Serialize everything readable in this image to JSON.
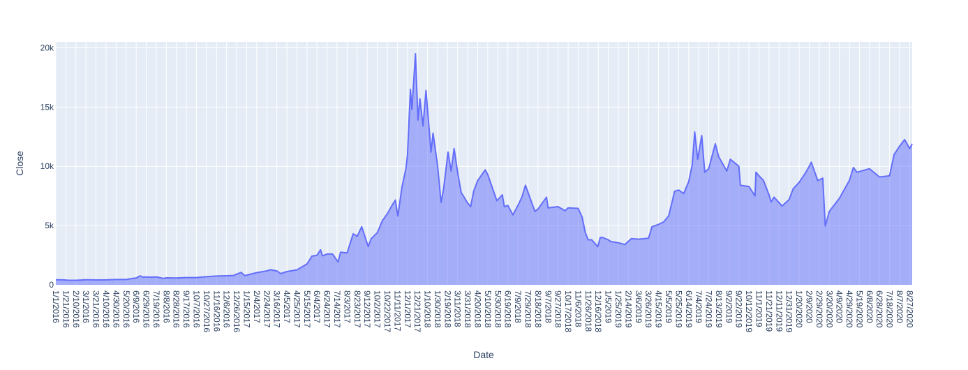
{
  "chart_data": {
    "type": "area",
    "title": "",
    "xlabel": "Date",
    "ylabel": "Close",
    "x_start": "2016-01-01",
    "x_end": "2020-09-01",
    "ylim": [
      0,
      20500
    ],
    "y_ticks": [
      {
        "value": 0,
        "label": "0"
      },
      {
        "value": 5000,
        "label": "5k"
      },
      {
        "value": 10000,
        "label": "10k"
      },
      {
        "value": 15000,
        "label": "15k"
      },
      {
        "value": 20000,
        "label": "20k"
      }
    ],
    "x_tick_labels": [
      "1/1/2016",
      "1/21/2016",
      "2/10/2016",
      "3/1/2016",
      "3/21/2016",
      "4/10/2016",
      "4/30/2016",
      "5/20/2016",
      "6/9/2016",
      "6/29/2016",
      "7/19/2016",
      "8/8/2016",
      "8/28/2016",
      "9/17/2016",
      "10/7/2016",
      "10/27/2016",
      "11/16/2016",
      "12/6/2016",
      "12/26/2016",
      "1/15/2017",
      "2/4/2017",
      "2/24/2017",
      "3/16/2017",
      "4/5/2017",
      "4/25/2017",
      "5/15/2017",
      "6/4/2017",
      "6/24/2017",
      "7/14/2017",
      "8/3/2017",
      "8/23/2017",
      "9/12/2017",
      "10/2/2017",
      "10/22/2017",
      "11/11/2017",
      "12/1/2017",
      "12/21/2017",
      "1/10/2018",
      "1/30/2018",
      "2/19/2018",
      "3/11/2018",
      "3/31/2018",
      "4/20/2018",
      "5/10/2018",
      "5/30/2018",
      "6/19/2018",
      "7/9/2018",
      "7/29/2018",
      "8/18/2018",
      "9/7/2018",
      "9/27/2018",
      "10/17/2018",
      "11/6/2018",
      "11/26/2018",
      "12/16/2018",
      "1/5/2019",
      "1/25/2019",
      "2/14/2019",
      "3/6/2019",
      "3/26/2019",
      "4/15/2019",
      "5/5/2019",
      "5/25/2019",
      "6/14/2019",
      "7/4/2019",
      "7/24/2019",
      "8/13/2019",
      "9/2/2019",
      "9/22/2019",
      "10/12/2019",
      "11/1/2019",
      "11/21/2019",
      "12/11/2019",
      "12/31/2019",
      "1/20/2020",
      "2/9/2020",
      "2/29/2020",
      "3/20/2020",
      "4/9/2020",
      "4/29/2020",
      "5/19/2020",
      "6/8/2020",
      "6/28/2020",
      "7/18/2020",
      "8/7/2020",
      "8/27/2020"
    ],
    "series": [
      {
        "color": "#636efa",
        "fill": "rgba(99,110,250,0.5)",
        "points": [
          [
            "2016-01-01",
            430
          ],
          [
            "2016-01-15",
            420
          ],
          [
            "2016-01-25",
            390
          ],
          [
            "2016-02-10",
            380
          ],
          [
            "2016-03-01",
            430
          ],
          [
            "2016-03-21",
            415
          ],
          [
            "2016-04-10",
            420
          ],
          [
            "2016-04-30",
            450
          ],
          [
            "2016-05-20",
            445
          ],
          [
            "2016-06-01",
            535
          ],
          [
            "2016-06-09",
            575
          ],
          [
            "2016-06-17",
            760
          ],
          [
            "2016-06-22",
            650
          ],
          [
            "2016-06-29",
            660
          ],
          [
            "2016-07-10",
            650
          ],
          [
            "2016-07-19",
            670
          ],
          [
            "2016-08-02",
            540
          ],
          [
            "2016-08-08",
            590
          ],
          [
            "2016-08-28",
            575
          ],
          [
            "2016-09-17",
            610
          ],
          [
            "2016-10-07",
            615
          ],
          [
            "2016-10-27",
            685
          ],
          [
            "2016-11-16",
            745
          ],
          [
            "2016-12-06",
            765
          ],
          [
            "2016-12-20",
            790
          ],
          [
            "2016-12-26",
            900
          ],
          [
            "2017-01-04",
            1050
          ],
          [
            "2017-01-11",
            780
          ],
          [
            "2017-01-15",
            820
          ],
          [
            "2017-02-04",
            1030
          ],
          [
            "2017-02-24",
            1170
          ],
          [
            "2017-03-03",
            1270
          ],
          [
            "2017-03-16",
            1170
          ],
          [
            "2017-03-24",
            950
          ],
          [
            "2017-04-05",
            1120
          ],
          [
            "2017-04-25",
            1260
          ],
          [
            "2017-05-15",
            1760
          ],
          [
            "2017-05-25",
            2420
          ],
          [
            "2017-06-04",
            2500
          ],
          [
            "2017-06-11",
            2960
          ],
          [
            "2017-06-15",
            2450
          ],
          [
            "2017-06-24",
            2600
          ],
          [
            "2017-07-05",
            2600
          ],
          [
            "2017-07-16",
            1930
          ],
          [
            "2017-07-21",
            2750
          ],
          [
            "2017-08-03",
            2700
          ],
          [
            "2017-08-15",
            4300
          ],
          [
            "2017-08-23",
            4100
          ],
          [
            "2017-09-01",
            4900
          ],
          [
            "2017-09-05",
            4400
          ],
          [
            "2017-09-14",
            3230
          ],
          [
            "2017-09-20",
            3900
          ],
          [
            "2017-10-02",
            4400
          ],
          [
            "2017-10-12",
            5400
          ],
          [
            "2017-10-22",
            6000
          ],
          [
            "2017-11-01",
            6750
          ],
          [
            "2017-11-07",
            7150
          ],
          [
            "2017-11-12",
            5800
          ],
          [
            "2017-11-20",
            8200
          ],
          [
            "2017-11-28",
            9800
          ],
          [
            "2017-12-01",
            10900
          ],
          [
            "2017-12-07",
            16500
          ],
          [
            "2017-12-10",
            14800
          ],
          [
            "2017-12-17",
            19500
          ],
          [
            "2017-12-22",
            13900
          ],
          [
            "2017-12-26",
            15700
          ],
          [
            "2018-01-01",
            13400
          ],
          [
            "2018-01-07",
            16400
          ],
          [
            "2018-01-17",
            11200
          ],
          [
            "2018-01-21",
            12800
          ],
          [
            "2018-01-30",
            10100
          ],
          [
            "2018-02-06",
            6950
          ],
          [
            "2018-02-11",
            8100
          ],
          [
            "2018-02-20",
            11200
          ],
          [
            "2018-02-26",
            9600
          ],
          [
            "2018-03-04",
            11500
          ],
          [
            "2018-03-11",
            9500
          ],
          [
            "2018-03-18",
            7800
          ],
          [
            "2018-03-31",
            6900
          ],
          [
            "2018-04-06",
            6600
          ],
          [
            "2018-04-12",
            7900
          ],
          [
            "2018-04-20",
            8800
          ],
          [
            "2018-05-05",
            9700
          ],
          [
            "2018-05-10",
            9300
          ],
          [
            "2018-05-28",
            7100
          ],
          [
            "2018-06-08",
            7600
          ],
          [
            "2018-06-12",
            6600
          ],
          [
            "2018-06-19",
            6700
          ],
          [
            "2018-06-29",
            5900
          ],
          [
            "2018-07-09",
            6700
          ],
          [
            "2018-07-17",
            7400
          ],
          [
            "2018-07-24",
            8400
          ],
          [
            "2018-08-05",
            7000
          ],
          [
            "2018-08-12",
            6200
          ],
          [
            "2018-08-18",
            6400
          ],
          [
            "2018-09-04",
            7400
          ],
          [
            "2018-09-07",
            6500
          ],
          [
            "2018-09-27",
            6600
          ],
          [
            "2018-10-11",
            6250
          ],
          [
            "2018-10-17",
            6500
          ],
          [
            "2018-11-06",
            6450
          ],
          [
            "2018-11-14",
            5700
          ],
          [
            "2018-11-20",
            4450
          ],
          [
            "2018-11-26",
            3800
          ],
          [
            "2018-12-03",
            3800
          ],
          [
            "2018-12-15",
            3220
          ],
          [
            "2018-12-20",
            4000
          ],
          [
            "2018-12-24",
            4000
          ],
          [
            "2019-01-05",
            3800
          ],
          [
            "2019-01-10",
            3650
          ],
          [
            "2019-01-25",
            3550
          ],
          [
            "2019-02-07",
            3400
          ],
          [
            "2019-02-20",
            3900
          ],
          [
            "2019-03-06",
            3850
          ],
          [
            "2019-03-26",
            3930
          ],
          [
            "2019-04-02",
            4900
          ],
          [
            "2019-04-15",
            5100
          ],
          [
            "2019-04-25",
            5300
          ],
          [
            "2019-05-05",
            5800
          ],
          [
            "2019-05-12",
            7000
          ],
          [
            "2019-05-17",
            7900
          ],
          [
            "2019-05-25",
            8000
          ],
          [
            "2019-06-04",
            7700
          ],
          [
            "2019-06-14",
            8700
          ],
          [
            "2019-06-21",
            10100
          ],
          [
            "2019-06-26",
            12900
          ],
          [
            "2019-07-02",
            10600
          ],
          [
            "2019-07-10",
            12600
          ],
          [
            "2019-07-16",
            9500
          ],
          [
            "2019-07-24",
            9800
          ],
          [
            "2019-08-06",
            11900
          ],
          [
            "2019-08-13",
            10800
          ],
          [
            "2019-08-29",
            9600
          ],
          [
            "2019-09-05",
            10600
          ],
          [
            "2019-09-22",
            10000
          ],
          [
            "2019-09-25",
            8400
          ],
          [
            "2019-10-12",
            8300
          ],
          [
            "2019-10-24",
            7500
          ],
          [
            "2019-10-26",
            9500
          ],
          [
            "2019-11-01",
            9200
          ],
          [
            "2019-11-10",
            8800
          ],
          [
            "2019-11-21",
            7600
          ],
          [
            "2019-11-25",
            7000
          ],
          [
            "2019-12-01",
            7400
          ],
          [
            "2019-12-17",
            6650
          ],
          [
            "2019-12-31",
            7200
          ],
          [
            "2020-01-08",
            8100
          ],
          [
            "2020-01-20",
            8650
          ],
          [
            "2020-02-01",
            9400
          ],
          [
            "2020-02-09",
            10000
          ],
          [
            "2020-02-13",
            10350
          ],
          [
            "2020-02-26",
            8800
          ],
          [
            "2020-03-07",
            9000
          ],
          [
            "2020-03-12",
            4970
          ],
          [
            "2020-03-20",
            6200
          ],
          [
            "2020-04-09",
            7300
          ],
          [
            "2020-04-29",
            8800
          ],
          [
            "2020-05-07",
            9900
          ],
          [
            "2020-05-14",
            9500
          ],
          [
            "2020-05-31",
            9700
          ],
          [
            "2020-06-08",
            9800
          ],
          [
            "2020-06-28",
            9100
          ],
          [
            "2020-07-18",
            9200
          ],
          [
            "2020-07-27",
            11000
          ],
          [
            "2020-08-07",
            11700
          ],
          [
            "2020-08-17",
            12250
          ],
          [
            "2020-08-27",
            11500
          ],
          [
            "2020-09-01",
            11900
          ]
        ]
      }
    ]
  }
}
